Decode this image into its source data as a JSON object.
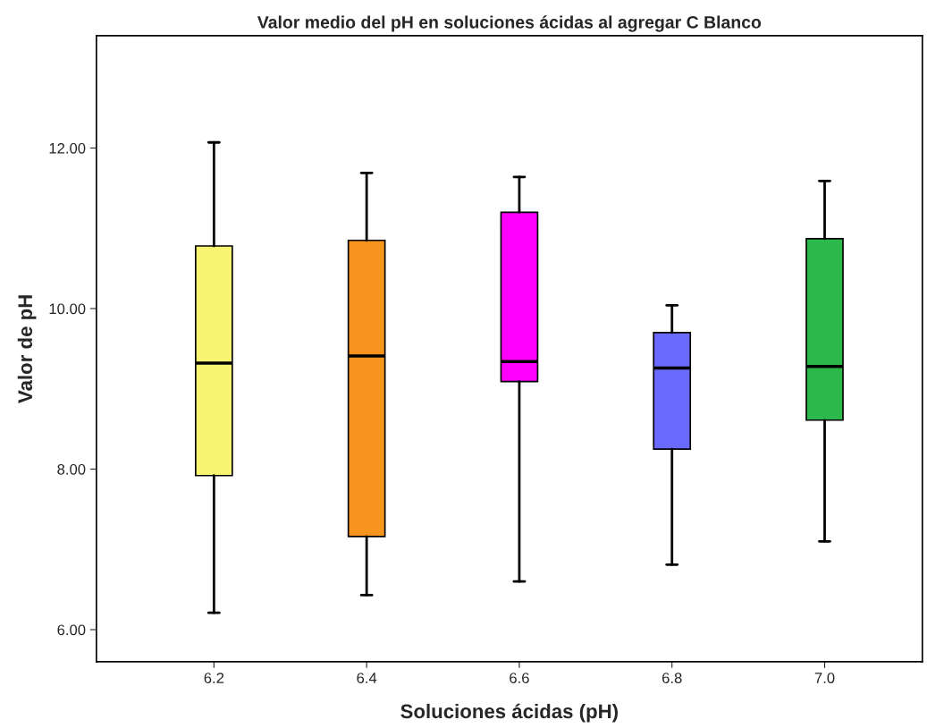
{
  "chart_data": {
    "type": "box",
    "title": "Valor medio del pH en soluciones ácidas al agregar C Blanco",
    "xlabel": "Soluciones ácidas (pH)",
    "ylabel": "Valor de pH",
    "categories": [
      "6.2",
      "6.4",
      "6.6",
      "6.8",
      "7.0"
    ],
    "colors": [
      "#f8f572",
      "#f7941d",
      "#ff00ff",
      "#6a6afe",
      "#2db84b"
    ],
    "boxes": [
      {
        "low": 6.21,
        "q1": 7.92,
        "median": 9.32,
        "q3": 10.78,
        "high": 12.07
      },
      {
        "low": 6.43,
        "q1": 7.16,
        "median": 9.41,
        "q3": 10.85,
        "high": 11.69
      },
      {
        "low": 6.6,
        "q1": 9.09,
        "median": 9.34,
        "q3": 11.2,
        "high": 11.64
      },
      {
        "low": 6.81,
        "q1": 8.25,
        "median": 9.26,
        "q3": 9.7,
        "high": 10.04
      },
      {
        "low": 7.1,
        "q1": 8.61,
        "median": 9.28,
        "q3": 10.87,
        "high": 11.59
      }
    ],
    "ylim": [
      5.6,
      13.4
    ],
    "yticks": [
      {
        "value": 6,
        "label": "6.00"
      },
      {
        "value": 8,
        "label": "8.00"
      },
      {
        "value": 10,
        "label": "10.00"
      },
      {
        "value": 12,
        "label": "12.00"
      }
    ],
    "grid": false,
    "legend": false
  }
}
